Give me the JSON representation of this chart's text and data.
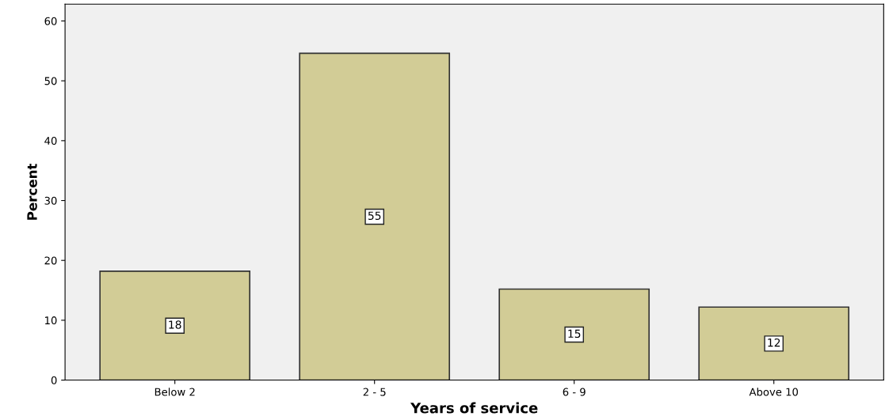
{
  "chart_data": {
    "type": "bar",
    "xlabel": "Years of service",
    "ylabel": "Percent",
    "categories": [
      "Below 2",
      "2 - 5",
      "6 - 9",
      "Above 10"
    ],
    "values": [
      18.2,
      54.6,
      15.2,
      12.2
    ],
    "value_labels": [
      "18",
      "55",
      "15",
      "12"
    ],
    "color": "#d2cc96",
    "ylim": [
      0,
      62.8
    ],
    "yticks": [
      0,
      10,
      20,
      30,
      40,
      50,
      60
    ],
    "grid": false
  }
}
